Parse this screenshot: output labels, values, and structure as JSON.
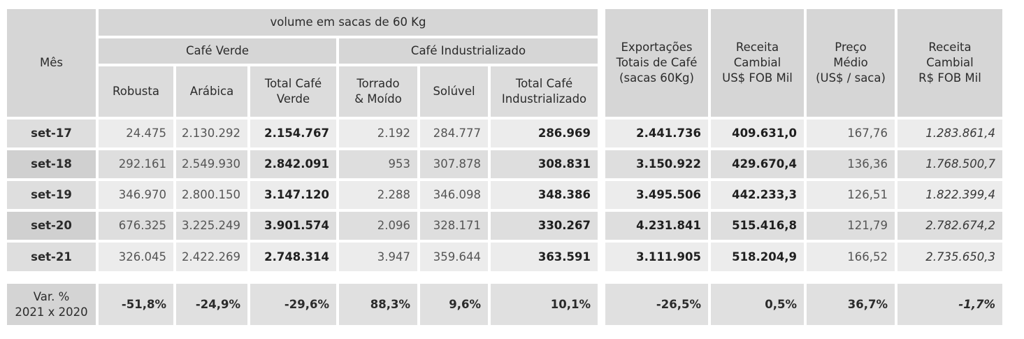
{
  "header": {
    "mes": "Mês",
    "volume": "volume em sacas de 60 Kg",
    "cafe_verde": "Café Verde",
    "cafe_industrializado": "Café Industrializado",
    "robusta": "Robusta",
    "arabica": "Arábica",
    "total_verde": [
      "Total Café",
      "Verde"
    ],
    "torrado": [
      "Torrado",
      "& Moído"
    ],
    "soluvel": "Solúvel",
    "total_industrializado": [
      "Total Café",
      "Industrializado"
    ],
    "exportacoes": [
      "Exportações",
      "Totais de Café",
      "(sacas 60Kg)"
    ],
    "receita_usd": [
      "Receita",
      "Cambial",
      "US$ FOB Mil"
    ],
    "preco": [
      "Preço",
      "Médio",
      "(US$ / saca)"
    ],
    "receita_brl": [
      "Receita",
      "Cambial",
      "R$ FOB Mil"
    ]
  },
  "rows": [
    {
      "mes": "set-17",
      "robusta": "24.475",
      "arabica": "2.130.292",
      "total_verde": "2.154.767",
      "torrado": "2.192",
      "soluvel": "284.777",
      "total_ind": "286.969",
      "exportacoes": "2.441.736",
      "receita_usd": "409.631,0",
      "preco": "167,76",
      "receita_brl": "1.283.861,4"
    },
    {
      "mes": "set-18",
      "robusta": "292.161",
      "arabica": "2.549.930",
      "total_verde": "2.842.091",
      "torrado": "953",
      "soluvel": "307.878",
      "total_ind": "308.831",
      "exportacoes": "3.150.922",
      "receita_usd": "429.670,4",
      "preco": "136,36",
      "receita_brl": "1.768.500,7"
    },
    {
      "mes": "set-19",
      "robusta": "346.970",
      "arabica": "2.800.150",
      "total_verde": "3.147.120",
      "torrado": "2.288",
      "soluvel": "346.098",
      "total_ind": "348.386",
      "exportacoes": "3.495.506",
      "receita_usd": "442.233,3",
      "preco": "126,51",
      "receita_brl": "1.822.399,4"
    },
    {
      "mes": "set-20",
      "robusta": "676.325",
      "arabica": "3.225.249",
      "total_verde": "3.901.574",
      "torrado": "2.096",
      "soluvel": "328.171",
      "total_ind": "330.267",
      "exportacoes": "4.231.841",
      "receita_usd": "515.416,8",
      "preco": "121,79",
      "receita_brl": "2.782.674,2"
    },
    {
      "mes": "set-21",
      "robusta": "326.045",
      "arabica": "2.422.269",
      "total_verde": "2.748.314",
      "torrado": "3.947",
      "soluvel": "359.644",
      "total_ind": "363.591",
      "exportacoes": "3.111.905",
      "receita_usd": "518.204,9",
      "preco": "166,52",
      "receita_brl": "2.735.650,3"
    }
  ],
  "variation": {
    "label": [
      "Var. %",
      "2021 x 2020"
    ],
    "robusta": "-51,8%",
    "arabica": "-24,9%",
    "total_verde": "-29,6%",
    "torrado": "88,3%",
    "soluvel": "9,6%",
    "total_ind": "10,1%",
    "exportacoes": "-26,5%",
    "receita_usd": "0,5%",
    "preco": "36,7%",
    "receita_brl": "-1,7%"
  }
}
